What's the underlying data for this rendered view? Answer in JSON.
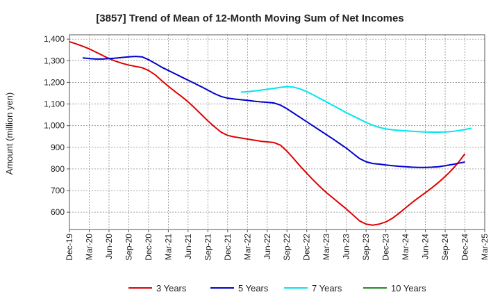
{
  "chart_data": {
    "type": "line",
    "title": "[3857]  Trend of Mean of 12-Month Moving Sum of Net Incomes",
    "xlabel": "",
    "ylabel": "Amount (million yen)",
    "ylim": [
      520,
      1420
    ],
    "yticks": [
      600,
      700,
      800,
      900,
      1000,
      1100,
      1200,
      1300,
      1400
    ],
    "ytick_labels": [
      "600",
      "700",
      "800",
      "900",
      "1,000",
      "1,100",
      "1,200",
      "1,300",
      "1,400"
    ],
    "x_tick_labels": [
      "Dec-19",
      "Mar-20",
      "Jun-20",
      "Sep-20",
      "Dec-20",
      "Mar-21",
      "Jun-21",
      "Sep-21",
      "Dec-21",
      "Mar-22",
      "Jun-22",
      "Sep-22",
      "Dec-22",
      "Mar-23",
      "Jun-23",
      "Sep-23",
      "Dec-23",
      "Mar-24",
      "Jun-24",
      "Sep-24",
      "Dec-24",
      "Mar-25"
    ],
    "grid": true,
    "legend_position": "bottom",
    "series": [
      {
        "name": "3 Years",
        "color": "#e00000",
        "points": [
          [
            0,
            1388
          ],
          [
            1,
            1378
          ],
          [
            2,
            1367
          ],
          [
            3,
            1355
          ],
          [
            4,
            1340
          ],
          [
            5,
            1325
          ],
          [
            6,
            1310
          ],
          [
            7,
            1298
          ],
          [
            8,
            1288
          ],
          [
            9,
            1280
          ],
          [
            10,
            1274
          ],
          [
            11,
            1268
          ],
          [
            12,
            1255
          ],
          [
            13,
            1235
          ],
          [
            14,
            1208
          ],
          [
            15,
            1182
          ],
          [
            16,
            1158
          ],
          [
            17,
            1135
          ],
          [
            18,
            1110
          ],
          [
            19,
            1082
          ],
          [
            20,
            1052
          ],
          [
            21,
            1022
          ],
          [
            22,
            995
          ],
          [
            23,
            970
          ],
          [
            24,
            955
          ],
          [
            25,
            948
          ],
          [
            26,
            943
          ],
          [
            27,
            938
          ],
          [
            28,
            933
          ],
          [
            29,
            928
          ],
          [
            30,
            925
          ],
          [
            31,
            922
          ],
          [
            32,
            910
          ],
          [
            33,
            882
          ],
          [
            34,
            848
          ],
          [
            35,
            813
          ],
          [
            36,
            780
          ],
          [
            37,
            748
          ],
          [
            38,
            718
          ],
          [
            39,
            690
          ],
          [
            40,
            665
          ],
          [
            41,
            640
          ],
          [
            42,
            615
          ],
          [
            43,
            588
          ],
          [
            44,
            560
          ],
          [
            45,
            545
          ],
          [
            46,
            540
          ],
          [
            47,
            545
          ],
          [
            48,
            555
          ],
          [
            49,
            572
          ],
          [
            50,
            595
          ],
          [
            51,
            620
          ],
          [
            52,
            645
          ],
          [
            53,
            668
          ],
          [
            54,
            690
          ],
          [
            55,
            713
          ],
          [
            56,
            738
          ],
          [
            57,
            765
          ],
          [
            58,
            795
          ],
          [
            59,
            830
          ],
          [
            60,
            870
          ]
        ]
      },
      {
        "name": "5 Years",
        "color": "#0000cc",
        "points": [
          [
            2,
            1313
          ],
          [
            3,
            1310
          ],
          [
            4,
            1308
          ],
          [
            5,
            1308
          ],
          [
            6,
            1310
          ],
          [
            7,
            1312
          ],
          [
            8,
            1315
          ],
          [
            9,
            1318
          ],
          [
            10,
            1320
          ],
          [
            11,
            1318
          ],
          [
            12,
            1305
          ],
          [
            13,
            1288
          ],
          [
            14,
            1270
          ],
          [
            15,
            1255
          ],
          [
            16,
            1240
          ],
          [
            17,
            1225
          ],
          [
            18,
            1210
          ],
          [
            19,
            1195
          ],
          [
            20,
            1180
          ],
          [
            21,
            1164
          ],
          [
            22,
            1148
          ],
          [
            23,
            1135
          ],
          [
            24,
            1127
          ],
          [
            25,
            1123
          ],
          [
            26,
            1120
          ],
          [
            27,
            1117
          ],
          [
            28,
            1113
          ],
          [
            29,
            1110
          ],
          [
            30,
            1108
          ],
          [
            31,
            1105
          ],
          [
            32,
            1095
          ],
          [
            33,
            1078
          ],
          [
            34,
            1058
          ],
          [
            35,
            1038
          ],
          [
            36,
            1018
          ],
          [
            37,
            998
          ],
          [
            38,
            978
          ],
          [
            39,
            958
          ],
          [
            40,
            938
          ],
          [
            41,
            917
          ],
          [
            42,
            896
          ],
          [
            43,
            872
          ],
          [
            44,
            848
          ],
          [
            45,
            833
          ],
          [
            46,
            825
          ],
          [
            47,
            822
          ],
          [
            48,
            818
          ],
          [
            49,
            815
          ],
          [
            50,
            812
          ],
          [
            51,
            810
          ],
          [
            52,
            808
          ],
          [
            53,
            807
          ],
          [
            54,
            807
          ],
          [
            55,
            808
          ],
          [
            56,
            810
          ],
          [
            57,
            815
          ],
          [
            58,
            820
          ],
          [
            59,
            826
          ],
          [
            60,
            832
          ]
        ]
      },
      {
        "name": "7 Years",
        "color": "#00e5ee",
        "points": [
          [
            26,
            1155
          ],
          [
            27,
            1157
          ],
          [
            28,
            1160
          ],
          [
            29,
            1164
          ],
          [
            30,
            1168
          ],
          [
            31,
            1172
          ],
          [
            32,
            1177
          ],
          [
            33,
            1180
          ],
          [
            34,
            1178
          ],
          [
            35,
            1170
          ],
          [
            36,
            1157
          ],
          [
            37,
            1142
          ],
          [
            38,
            1126
          ],
          [
            39,
            1110
          ],
          [
            40,
            1093
          ],
          [
            41,
            1077
          ],
          [
            42,
            1060
          ],
          [
            43,
            1045
          ],
          [
            44,
            1030
          ],
          [
            45,
            1015
          ],
          [
            46,
            1002
          ],
          [
            47,
            992
          ],
          [
            48,
            985
          ],
          [
            49,
            981
          ],
          [
            50,
            978
          ],
          [
            51,
            976
          ],
          [
            52,
            974
          ],
          [
            53,
            972
          ],
          [
            54,
            971
          ],
          [
            55,
            970
          ],
          [
            56,
            970
          ],
          [
            57,
            971
          ],
          [
            58,
            973
          ],
          [
            59,
            977
          ],
          [
            60,
            982
          ],
          [
            61,
            988
          ]
        ]
      },
      {
        "name": "10 Years",
        "color": "#228b22",
        "points": []
      }
    ]
  }
}
